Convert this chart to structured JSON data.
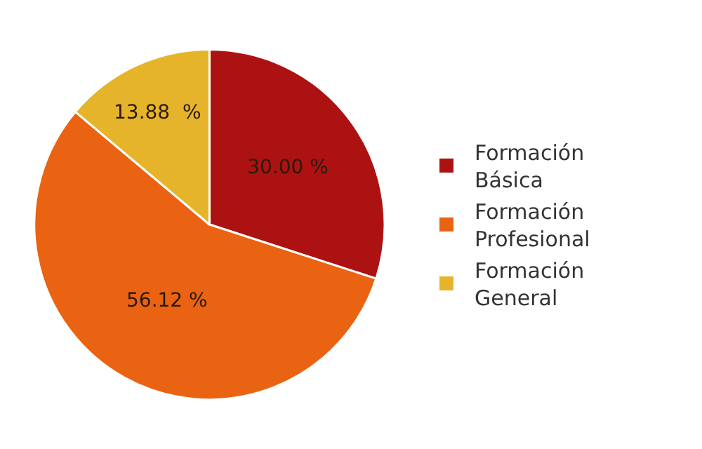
{
  "chart_data": {
    "type": "pie",
    "categories": [
      "Formación Básica",
      "Formación Profesional",
      "Formación General"
    ],
    "values": [
      30.0,
      56.12,
      13.88
    ],
    "colors": [
      "#ad1212",
      "#e96312",
      "#e6b42a"
    ],
    "value_labels": [
      "30.00 %",
      "56.12 %",
      "13.88  %"
    ],
    "legend": "right"
  }
}
